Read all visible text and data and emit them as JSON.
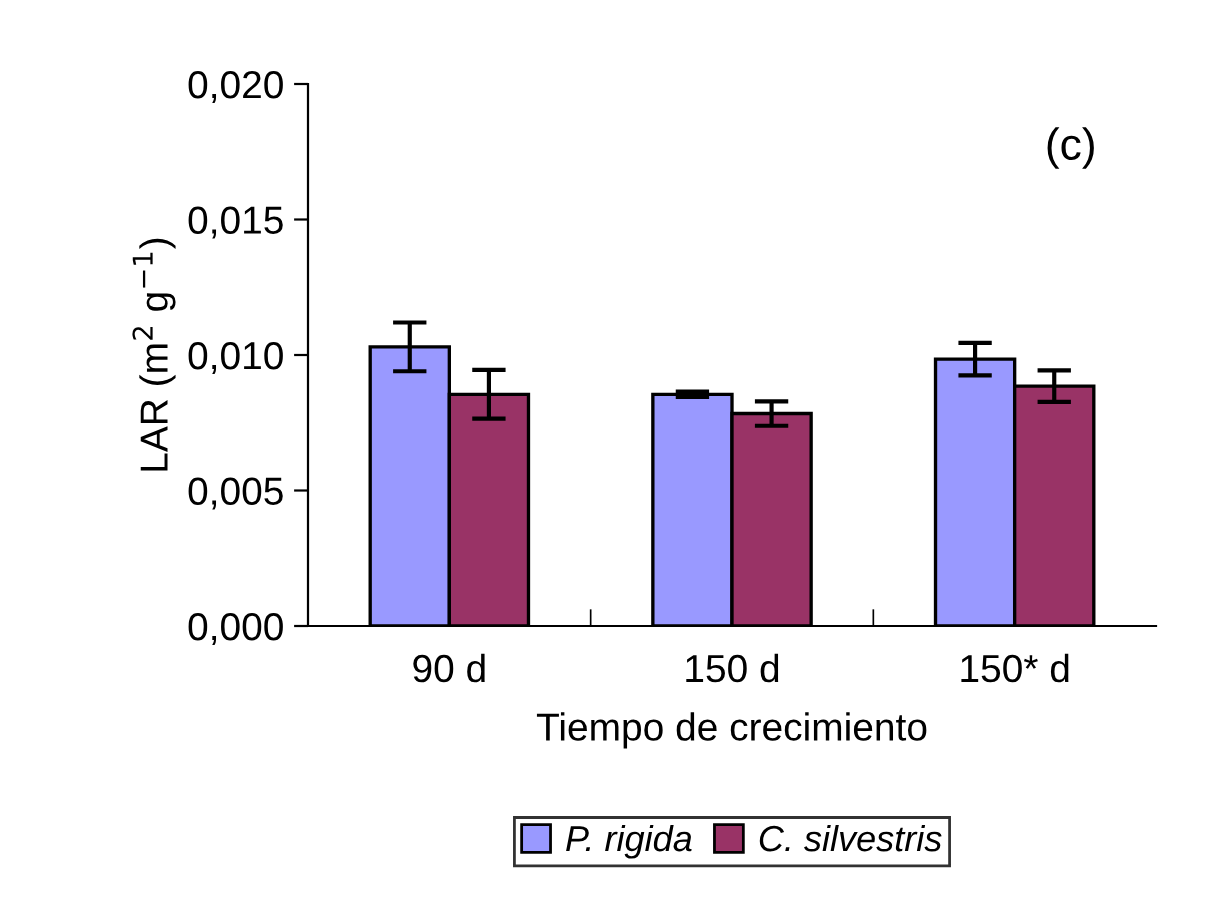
{
  "chart_data": {
    "type": "bar",
    "xlabel": "Tiempo de crecimiento",
    "ylabel": "LAR (m$^{2}$ g$^{−1}$)",
    "annotations": [
      "(c)"
    ],
    "categories": [
      "90 d",
      "150 d",
      "150* d"
    ],
    "series": [
      {
        "name": "P. rigida",
        "color": "#9999ff",
        "values": [
          0.0103,
          0.00855,
          0.00985
        ],
        "errors": [
          0.0009,
          0.0001,
          0.0006
        ]
      },
      {
        "name": "C. silvestris",
        "color": "#993366",
        "values": [
          0.00855,
          0.00784,
          0.00885
        ],
        "errors": [
          0.0009,
          0.00045,
          0.00058
        ]
      }
    ],
    "ylim": [
      0,
      0.02
    ],
    "yticks": [
      {
        "value": 0,
        "label": "0,000"
      },
      {
        "value": 0.005,
        "label": "0,005"
      },
      {
        "value": 0.01,
        "label": "0,010"
      },
      {
        "value": 0.015,
        "label": "0,015"
      },
      {
        "value": 0.02,
        "label": "0,020"
      }
    ],
    "grid": false,
    "legend": "bottom"
  }
}
